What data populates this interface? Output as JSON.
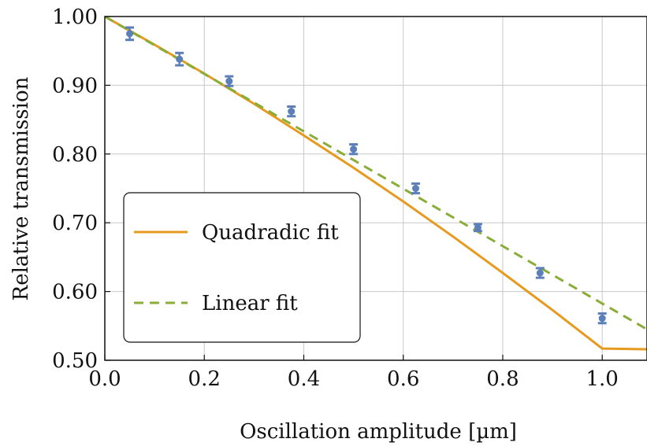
{
  "chart_data": {
    "type": "scatter",
    "xlabel": "Oscillation amplitude [µm]",
    "ylabel": "Relative transmission",
    "xlim": [
      0.0,
      1.09
    ],
    "ylim": [
      0.5,
      1.0
    ],
    "grid": true,
    "x_ticks": [
      0.0,
      0.2,
      0.4,
      0.6,
      0.8,
      1.0
    ],
    "x_tick_labels": [
      "0.0",
      "0.2",
      "0.4",
      "0.6",
      "0.8",
      "1.0"
    ],
    "y_ticks": [
      0.5,
      0.6,
      0.7,
      0.8,
      0.9,
      1.0
    ],
    "y_tick_labels": [
      "0.50",
      "0.60",
      "0.70",
      "0.80",
      "0.90",
      "1.00"
    ],
    "legend_position": "lower-left",
    "measurements": {
      "x": [
        0.05,
        0.15,
        0.25,
        0.375,
        0.5,
        0.625,
        0.75,
        0.875,
        1.0
      ],
      "y": [
        0.975,
        0.938,
        0.906,
        0.862,
        0.807,
        0.75,
        0.693,
        0.627,
        0.561
      ],
      "error": [
        0.009,
        0.009,
        0.007,
        0.007,
        0.007,
        0.007,
        0.005,
        0.007,
        0.007
      ],
      "color": "#5b7fb8"
    },
    "series": [
      {
        "name": "Quadradic fit",
        "style": "solid",
        "color": "#e69a1f",
        "x": [
          0.0,
          0.1,
          0.2,
          0.3,
          0.4,
          0.5,
          0.6,
          0.7,
          0.8,
          0.9,
          1.0,
          1.09
        ],
        "y": [
          1.0,
          0.959,
          0.917,
          0.873,
          0.827,
          0.78,
          0.731,
          0.68,
          0.627,
          0.573,
          0.517,
          0.516
        ]
      },
      {
        "name": "Linear fit",
        "style": "dashed",
        "color": "#8aad3a",
        "x": [
          0.0,
          1.09
        ],
        "y": [
          1.0,
          0.545
        ]
      }
    ]
  }
}
